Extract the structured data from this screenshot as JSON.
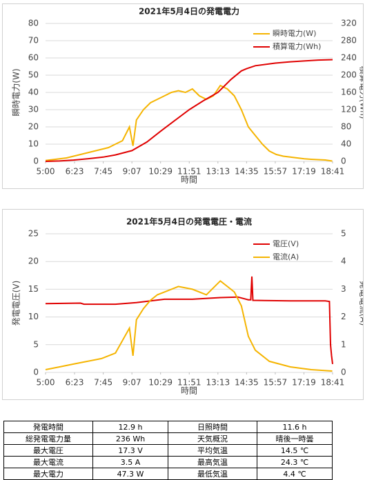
{
  "chart_data": [
    {
      "type": "line",
      "title": "2021年5月4日の発電電力",
      "xlabel": "時間",
      "ylabel": "瞬時電力(W)",
      "y2label": "積算電力(Wh)",
      "xlim": [
        300,
        1121
      ],
      "xticks": [
        {
          "value": 300,
          "label": "5:00"
        },
        {
          "value": 383,
          "label": "6:23"
        },
        {
          "value": 465,
          "label": "7:45"
        },
        {
          "value": 547,
          "label": "9:07"
        },
        {
          "value": 629,
          "label": "10:29"
        },
        {
          "value": 711,
          "label": "11:51"
        },
        {
          "value": 793,
          "label": "13:13"
        },
        {
          "value": 875,
          "label": "14:35"
        },
        {
          "value": 957,
          "label": "15:57"
        },
        {
          "value": 1039,
          "label": "17:19"
        },
        {
          "value": 1121,
          "label": "18:41"
        }
      ],
      "ylim": [
        0,
        80
      ],
      "yticks": [
        0,
        10,
        20,
        30,
        40,
        50,
        60,
        70,
        80
      ],
      "y2lim": [
        0,
        320
      ],
      "y2ticks": [
        0,
        40,
        80,
        120,
        160,
        200,
        240,
        280,
        320
      ],
      "grid": true,
      "legend": "upper right",
      "series": [
        {
          "name": "瞬時電力(W)",
          "color": "#f5b400",
          "x": [
            300,
            320,
            340,
            360,
            380,
            400,
            420,
            440,
            460,
            480,
            500,
            520,
            540,
            550,
            560,
            580,
            600,
            620,
            640,
            660,
            680,
            700,
            720,
            740,
            760,
            780,
            800,
            820,
            840,
            860,
            880,
            900,
            920,
            940,
            960,
            980,
            1000,
            1020,
            1040,
            1060,
            1080,
            1100,
            1120
          ],
          "values": [
            0.5,
            1,
            1.5,
            2,
            3,
            4,
            5,
            6,
            7,
            8,
            10,
            12,
            20,
            9,
            24,
            30,
            34,
            36,
            38,
            40,
            41,
            40,
            42,
            38,
            36,
            38,
            44,
            42,
            38,
            30,
            20,
            15,
            10,
            6,
            4,
            3,
            2.5,
            2,
            1.5,
            1.2,
            1,
            0.8,
            0.2
          ]
        },
        {
          "name": "積算電力(Wh)",
          "color": "#e00000",
          "axis": "y2",
          "x": [
            300,
            340,
            380,
            420,
            465,
            500,
            547,
            590,
            629,
            670,
            711,
            750,
            793,
            830,
            860,
            875,
            900,
            957,
            1000,
            1039,
            1080,
            1121
          ],
          "values": [
            0,
            1,
            3,
            6,
            10,
            15,
            25,
            45,
            70,
            95,
            120,
            140,
            160,
            190,
            210,
            215,
            222,
            228,
            231,
            233,
            235,
            236
          ]
        }
      ]
    },
    {
      "type": "line",
      "title": "2021年5月4日の発電電圧・電流",
      "xlabel": "時間",
      "ylabel": "発電電圧(V)",
      "y2label": "発電電流(A)",
      "xlim": [
        300,
        1121
      ],
      "xticks": [
        {
          "value": 300,
          "label": "5:00"
        },
        {
          "value": 383,
          "label": "6:23"
        },
        {
          "value": 465,
          "label": "7:45"
        },
        {
          "value": 547,
          "label": "9:07"
        },
        {
          "value": 629,
          "label": "10:29"
        },
        {
          "value": 711,
          "label": "11:51"
        },
        {
          "value": 793,
          "label": "13:13"
        },
        {
          "value": 875,
          "label": "14:35"
        },
        {
          "value": 957,
          "label": "15:57"
        },
        {
          "value": 1039,
          "label": "17:19"
        },
        {
          "value": 1121,
          "label": "18:41"
        }
      ],
      "ylim": [
        0,
        25
      ],
      "yticks": [
        0,
        5,
        10,
        15,
        20,
        25
      ],
      "y2lim": [
        0,
        5
      ],
      "y2ticks": [
        0,
        1,
        2,
        3,
        4,
        5
      ],
      "grid": true,
      "legend": "upper right",
      "series": [
        {
          "name": "電圧(V)",
          "color": "#e00000",
          "x": [
            300,
            400,
            410,
            420,
            500,
            560,
            640,
            720,
            800,
            850,
            880,
            887,
            890,
            893,
            1000,
            1100,
            1112,
            1115,
            1118,
            1121
          ],
          "values": [
            12.4,
            12.5,
            12.3,
            12.3,
            12.3,
            12.6,
            13.2,
            13.2,
            13.5,
            13.6,
            13.1,
            13.1,
            17.3,
            13,
            12.9,
            12.9,
            12.8,
            5,
            3,
            1.5
          ]
        },
        {
          "name": "電流(A)",
          "color": "#f5b400",
          "axis": "y2",
          "x": [
            300,
            340,
            380,
            420,
            460,
            500,
            540,
            550,
            560,
            580,
            600,
            620,
            640,
            680,
            720,
            760,
            800,
            820,
            840,
            860,
            880,
            900,
            940,
            1000,
            1060,
            1120
          ],
          "values": [
            0.1,
            0.2,
            0.3,
            0.4,
            0.5,
            0.7,
            1.6,
            0.6,
            1.9,
            2.3,
            2.6,
            2.8,
            2.9,
            3.1,
            3,
            2.8,
            3.3,
            3.1,
            2.9,
            2.4,
            1.3,
            0.8,
            0.4,
            0.2,
            0.1,
            0.05
          ]
        }
      ]
    }
  ],
  "table": {
    "rows": [
      [
        "発電時間",
        "12.9 h",
        "日照時間",
        "11.6 h"
      ],
      [
        "総発電電力量",
        "236 Wh",
        "天気概況",
        "晴後一時曇"
      ],
      [
        "最大電圧",
        "17.3 V",
        "平均気温",
        "14.5 ℃"
      ],
      [
        "最大電流",
        "3.5 A",
        "最高気温",
        "24.3 ℃"
      ],
      [
        "最大電力",
        "47.3 W",
        "最低気温",
        "4.4 ℃"
      ]
    ]
  }
}
